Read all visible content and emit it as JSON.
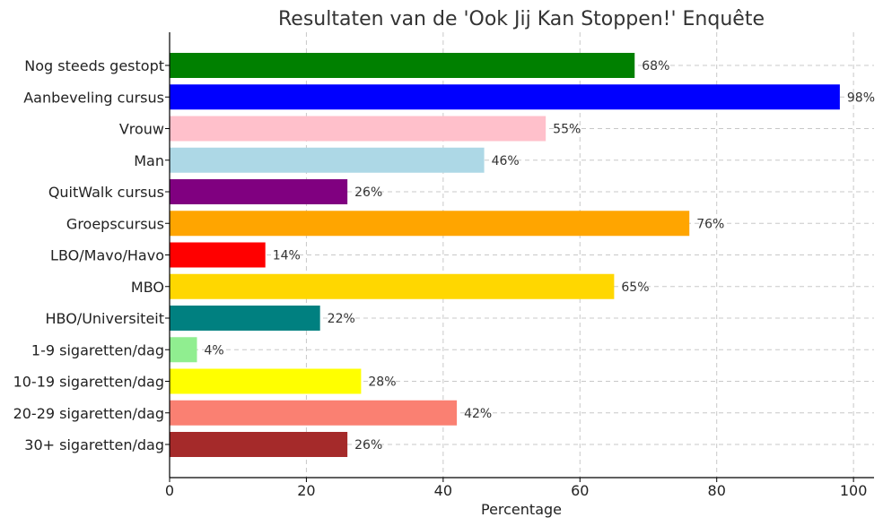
{
  "chart_data": {
    "type": "bar",
    "orientation": "horizontal",
    "title": "Resultaten van de 'Ook Jij Kan Stoppen!' Enquête",
    "xlabel": "Percentage",
    "ylabel": "",
    "xlim": [
      0,
      103
    ],
    "xticks": [
      0,
      20,
      40,
      60,
      80,
      100
    ],
    "grid": true,
    "value_suffix": "%",
    "categories": [
      "Nog steeds gestopt",
      "Aanbeveling cursus",
      "Vrouw",
      "Man",
      "QuitWalk cursus",
      "Groepscursus",
      "LBO/Mavo/Havo",
      "MBO",
      "HBO/Universiteit",
      "1-9 sigaretten/dag",
      "10-19 sigaretten/dag",
      "20-29 sigaretten/dag",
      "30+ sigaretten/dag"
    ],
    "values": [
      68,
      98,
      55,
      46,
      26,
      76,
      14,
      65,
      22,
      4,
      28,
      42,
      26
    ],
    "data_labels": [
      "68%",
      "98%",
      "55%",
      "46%",
      "26%",
      "76%",
      "14%",
      "65%",
      "22%",
      "4%",
      "28%",
      "42%",
      "26%"
    ],
    "colors": [
      "#008000",
      "#0000ff",
      "#ffc0cb",
      "#add8e6",
      "#800080",
      "#ffa500",
      "#ff0000",
      "#ffd700",
      "#008080",
      "#90ee90",
      "#ffff00",
      "#fa8072",
      "#a52a2a"
    ]
  }
}
